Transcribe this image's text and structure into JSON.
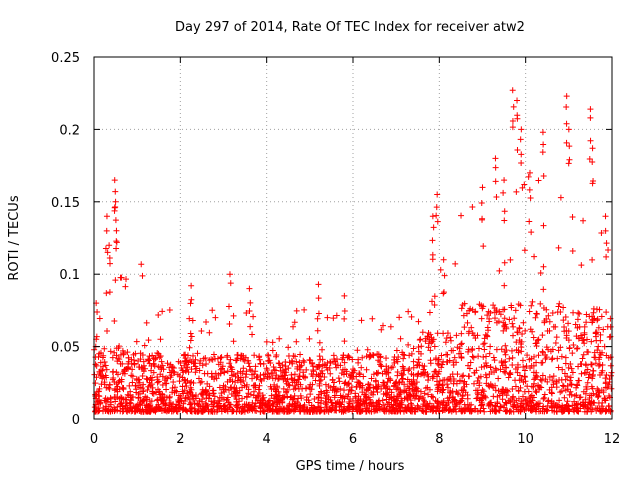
{
  "chart_data": {
    "type": "scatter",
    "title": "Day 297 of 2014, Rate Of TEC Index for receiver atw2",
    "xlabel": "GPS time / hours",
    "ylabel": "ROTI / TECUs",
    "xlim": [
      0,
      12
    ],
    "ylim": [
      0,
      0.25
    ],
    "grid": true,
    "marker": "+",
    "marker_color": "#ff0000",
    "x_ticks": [
      0,
      2,
      4,
      6,
      8,
      10,
      12
    ],
    "x_tick_labels": [
      "0",
      "2",
      "4",
      "6",
      "8",
      "10",
      "12"
    ],
    "y_ticks": [
      0,
      0.05,
      0.1,
      0.15,
      0.2,
      0.25
    ],
    "y_tick_labels": [
      "0",
      "0.05",
      "0.1",
      "0.15",
      "0.2",
      "0.25"
    ],
    "series": [
      {
        "name": "ROTI",
        "density_profile": [
          {
            "x_range": [
              0.0,
              1.2
            ],
            "typical_range": [
              0.005,
              0.05
            ],
            "max": 0.165
          },
          {
            "x_range": [
              1.2,
              7.5
            ],
            "typical_range": [
              0.005,
              0.045
            ],
            "max": 0.1
          },
          {
            "x_range": [
              7.5,
              8.5
            ],
            "typical_range": [
              0.005,
              0.06
            ],
            "max": 0.155
          },
          {
            "x_range": [
              8.5,
              12.0
            ],
            "typical_range": [
              0.005,
              0.08
            ],
            "max": 0.227
          }
        ],
        "notable_points": [
          {
            "x": 0.05,
            "y": 0.08
          },
          {
            "x": 0.3,
            "y": 0.14
          },
          {
            "x": 0.35,
            "y": 0.12
          },
          {
            "x": 0.48,
            "y": 0.165
          },
          {
            "x": 0.5,
            "y": 0.15
          },
          {
            "x": 0.52,
            "y": 0.13
          },
          {
            "x": 2.25,
            "y": 0.092
          },
          {
            "x": 3.15,
            "y": 0.1
          },
          {
            "x": 3.6,
            "y": 0.09
          },
          {
            "x": 5.2,
            "y": 0.093
          },
          {
            "x": 5.8,
            "y": 0.085
          },
          {
            "x": 7.85,
            "y": 0.14
          },
          {
            "x": 7.95,
            "y": 0.155
          },
          {
            "x": 8.1,
            "y": 0.11
          },
          {
            "x": 9.0,
            "y": 0.16
          },
          {
            "x": 9.3,
            "y": 0.18
          },
          {
            "x": 9.5,
            "y": 0.165
          },
          {
            "x": 9.7,
            "y": 0.227
          },
          {
            "x": 9.8,
            "y": 0.22
          },
          {
            "x": 9.9,
            "y": 0.2
          },
          {
            "x": 10.1,
            "y": 0.17
          },
          {
            "x": 10.4,
            "y": 0.198
          },
          {
            "x": 10.95,
            "y": 0.223
          },
          {
            "x": 11.0,
            "y": 0.2
          },
          {
            "x": 11.5,
            "y": 0.214
          },
          {
            "x": 11.55,
            "y": 0.187
          },
          {
            "x": 11.85,
            "y": 0.14
          }
        ]
      }
    ]
  }
}
